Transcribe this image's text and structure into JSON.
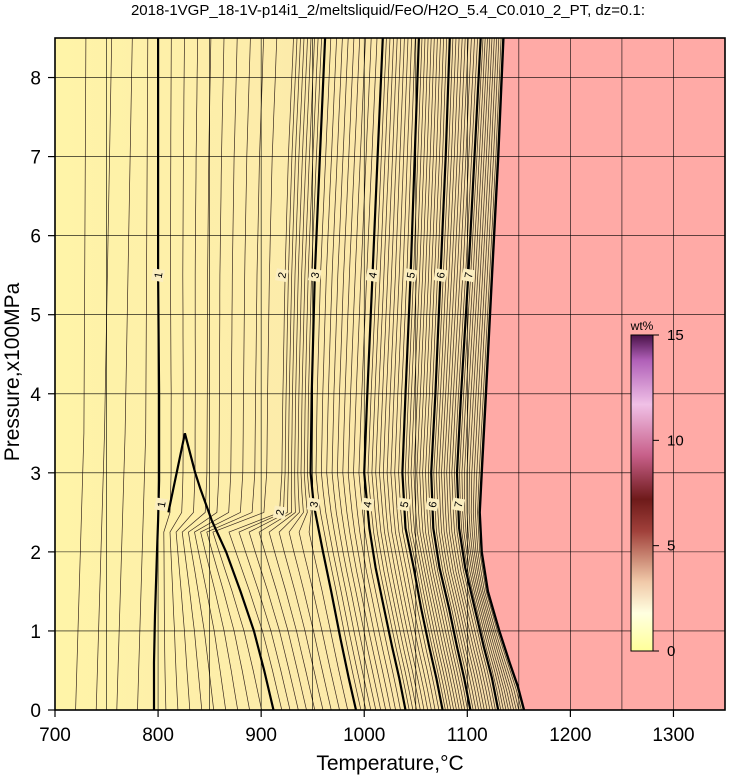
{
  "chart_data": {
    "type": "heatmap",
    "title": "2018-1VGP_18-1V-p14i1_2/meltsliquid/FeO/H2O_5.4_C0.010_2_PT, dz=0.1:",
    "xlabel": "Temperature,°C",
    "ylabel": "Pressure,x100MPa",
    "xlim": [
      700,
      1350
    ],
    "ylim": [
      0,
      8.5
    ],
    "x_ticks": [
      "700",
      "800",
      "900",
      "1000",
      "1100",
      "1200",
      "1300"
    ],
    "y_ticks": [
      "0",
      "1",
      "2",
      "3",
      "4",
      "5",
      "6",
      "7",
      "8"
    ],
    "grid": true,
    "colorbar": {
      "unit": "wt%",
      "range": [
        0,
        15
      ],
      "ticks": [
        "0",
        "5",
        "10",
        "15"
      ],
      "placement": "right"
    },
    "contour_interval": 0.1,
    "major_contours": [
      {
        "level": "1",
        "points": [
          [
            796,
            0.0
          ],
          [
            796,
            0.6
          ],
          [
            797,
            1.2
          ],
          [
            798,
            1.6
          ],
          [
            799,
            2.0
          ],
          [
            800,
            2.4
          ],
          [
            801,
            2.9
          ],
          [
            801,
            3.2
          ],
          [
            801,
            4.0
          ],
          [
            800,
            5.5
          ],
          [
            800,
            7.0
          ],
          [
            800,
            8.5
          ]
        ]
      },
      {
        "level": "2",
        "points": [
          [
            912,
            0.0
          ],
          [
            903,
            0.5
          ],
          [
            893,
            1.0
          ],
          [
            880,
            1.5
          ],
          [
            866,
            2.0
          ],
          [
            852,
            2.4
          ],
          [
            841,
            2.8
          ],
          [
            836,
            3.0
          ],
          [
            826,
            3.5
          ],
          [
            810,
            2.5
          ]
        ],
        "low_branch": true
      },
      {
        "level": "3",
        "points": [
          [
            992,
            0.0
          ],
          [
            985,
            0.4
          ],
          [
            977,
            0.9
          ],
          [
            968,
            1.5
          ],
          [
            960,
            2.0
          ],
          [
            951,
            2.6
          ],
          [
            948,
            3.0
          ],
          [
            949,
            4.0
          ],
          [
            952,
            5.5
          ],
          [
            957,
            7.0
          ],
          [
            962,
            8.5
          ]
        ]
      },
      {
        "level": "4",
        "points": [
          [
            1040,
            0.0
          ],
          [
            1034,
            0.4
          ],
          [
            1027,
            0.8
          ],
          [
            1019,
            1.3
          ],
          [
            1011,
            1.8
          ],
          [
            1005,
            2.3
          ],
          [
            1000,
            3.0
          ],
          [
            1003,
            4.0
          ],
          [
            1008,
            5.5
          ],
          [
            1013,
            7.0
          ],
          [
            1018,
            8.5
          ]
        ]
      },
      {
        "level": "5",
        "points": [
          [
            1076,
            0.0
          ],
          [
            1070,
            0.4
          ],
          [
            1063,
            0.8
          ],
          [
            1055,
            1.3
          ],
          [
            1048,
            1.8
          ],
          [
            1040,
            2.3
          ],
          [
            1037,
            3.0
          ],
          [
            1040,
            4.0
          ],
          [
            1045,
            5.5
          ],
          [
            1049,
            7.0
          ],
          [
            1053,
            8.5
          ]
        ]
      },
      {
        "level": "6",
        "points": [
          [
            1103,
            0.0
          ],
          [
            1097,
            0.4
          ],
          [
            1090,
            0.8
          ],
          [
            1082,
            1.3
          ],
          [
            1073,
            1.8
          ],
          [
            1067,
            2.3
          ],
          [
            1065,
            3.0
          ],
          [
            1069,
            4.0
          ],
          [
            1074,
            5.5
          ],
          [
            1079,
            7.0
          ],
          [
            1083,
            8.5
          ]
        ]
      },
      {
        "level": "7",
        "points": [
          [
            1130,
            0.0
          ],
          [
            1124,
            0.4
          ],
          [
            1116,
            0.8
          ],
          [
            1107,
            1.3
          ],
          [
            1098,
            1.8
          ],
          [
            1092,
            2.3
          ],
          [
            1090,
            3.0
          ],
          [
            1094,
            4.0
          ],
          [
            1101,
            5.5
          ],
          [
            1107,
            7.0
          ],
          [
            1113,
            8.5
          ]
        ]
      }
    ],
    "melt_boundary": [
      [
        1155,
        0.0
      ],
      [
        1149,
        0.3
      ],
      [
        1141,
        0.6
      ],
      [
        1131,
        1.0
      ],
      [
        1120,
        1.5
      ],
      [
        1114,
        2.0
      ],
      [
        1112,
        2.5
      ],
      [
        1114,
        3.0
      ],
      [
        1118,
        4.0
      ],
      [
        1124,
        5.5
      ],
      [
        1130,
        7.0
      ],
      [
        1135,
        8.5
      ]
    ],
    "above_boundary_color": "#ffaaa6",
    "low_color": "#fff3a6",
    "high_color": "#e8c8a0"
  }
}
